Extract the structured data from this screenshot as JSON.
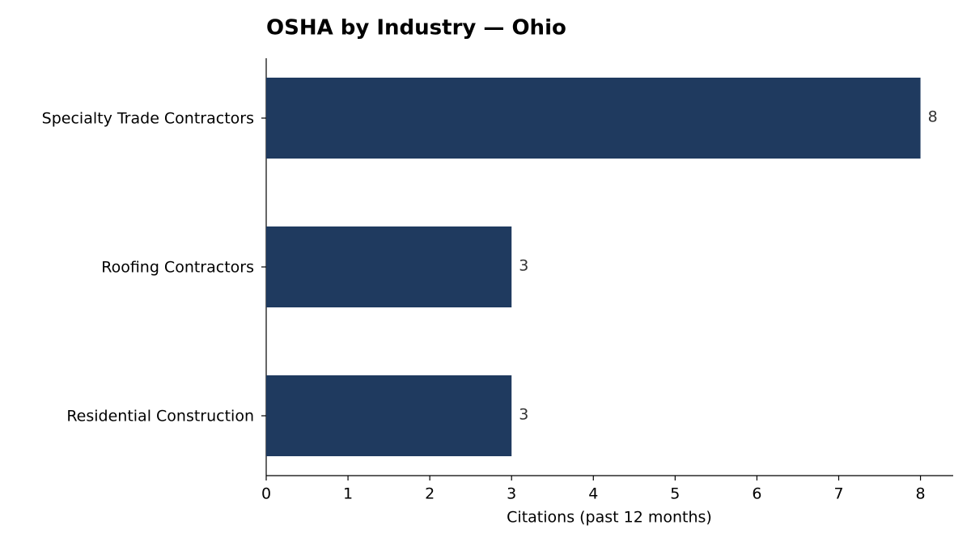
{
  "chart_data": {
    "type": "hbar",
    "title": "OSHA by Industry — Ohio",
    "categories": [
      "Specialty Trade Contractors",
      "Roofing Contractors",
      "Residential Construction"
    ],
    "values": [
      8,
      3,
      3
    ],
    "color": "#1f3a5f",
    "xlabel": "Citations (past 12 months)",
    "xlim": [
      0,
      8.4
    ],
    "xticks": [
      0,
      1,
      2,
      3,
      4,
      5,
      6,
      7,
      8
    ],
    "grid": false
  }
}
